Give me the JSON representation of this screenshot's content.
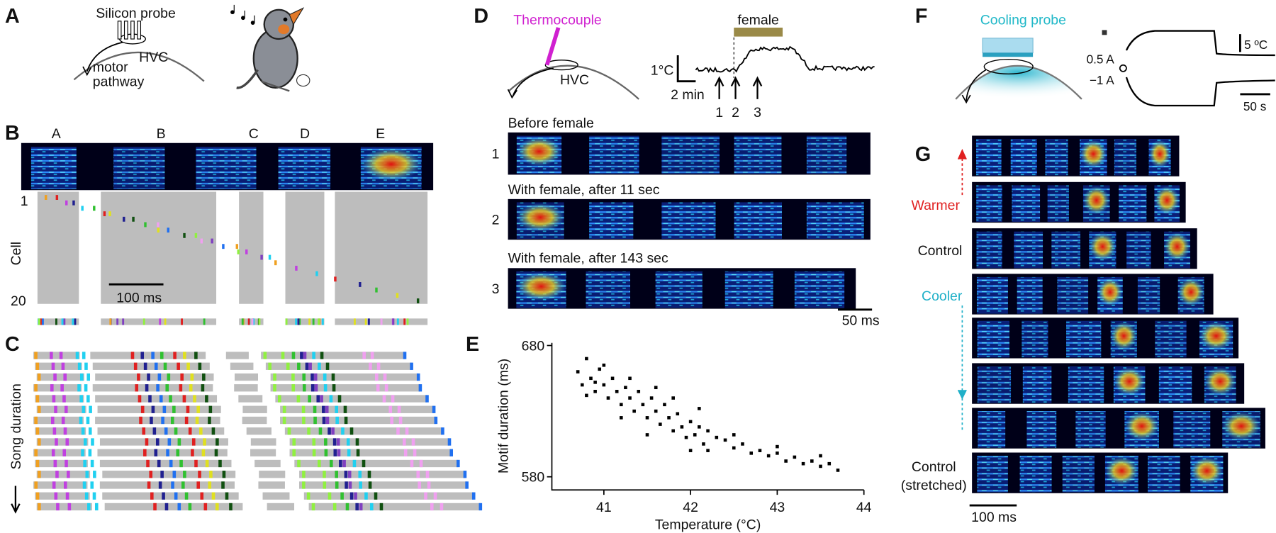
{
  "panels": {
    "A": {
      "letter": "A",
      "probe": "Silicon probe",
      "region": "HVC",
      "pathway": [
        "motor",
        "pathway"
      ]
    },
    "B": {
      "letter": "B",
      "syllables": [
        "A",
        "B",
        "C",
        "D",
        "E"
      ],
      "first_cell": "1",
      "cell_axis": "Cell",
      "last_cell": "20",
      "scale": "100 ms"
    },
    "C": {
      "letter": "C",
      "axis": "Song duration"
    },
    "D": {
      "letter": "D",
      "probe": "Thermocouple",
      "region": "HVC",
      "stimulus": "female",
      "temp_scale": "1°C",
      "time_scale": "2 min",
      "markers": [
        "1",
        "2",
        "3"
      ],
      "rows": [
        {
          "title": "Before female",
          "label": "1"
        },
        {
          "title": "With female, after 11 sec",
          "label": "2"
        },
        {
          "title": "With female, after 143 sec",
          "label": "3"
        }
      ],
      "scale": "50 ms"
    },
    "E": {
      "letter": "E"
    },
    "F": {
      "letter": "F",
      "probe": "Cooling probe",
      "temp_scale": "5 ºC",
      "currents": [
        "0.5 A",
        "−1 A"
      ],
      "time_scale": "50 s"
    },
    "G": {
      "letter": "G",
      "warmer": "Warmer",
      "control": "Control",
      "cooler": "Cooler",
      "stretched": [
        "Control",
        "(stretched)"
      ],
      "scale": "100 ms"
    }
  },
  "chart_data": {
    "type": "scatter",
    "xlabel": "Temperature (°C)",
    "ylabel": "Motif duration (ms)",
    "color": "#000000",
    "x": [
      40.7,
      40.75,
      40.8,
      40.85,
      40.9,
      40.95,
      41.0,
      41.05,
      41.1,
      41.15,
      41.2,
      41.25,
      41.3,
      41.35,
      41.4,
      41.45,
      41.5,
      41.55,
      41.6,
      41.65,
      41.7,
      41.75,
      41.8,
      41.85,
      41.9,
      41.95,
      42.0,
      42.05,
      42.1,
      42.15,
      42.2,
      42.3,
      42.4,
      42.5,
      42.6,
      42.7,
      42.8,
      42.9,
      43.0,
      43.1,
      43.2,
      43.3,
      43.4,
      43.5,
      43.6,
      43.7,
      40.8,
      41.0,
      41.3,
      41.5,
      41.8,
      42.0,
      42.2,
      43.0,
      43.5,
      42.5,
      41.2,
      40.9,
      41.6,
      42.1
    ],
    "y": [
      660,
      650,
      670,
      655,
      645,
      662,
      650,
      640,
      655,
      645,
      635,
      648,
      640,
      630,
      645,
      635,
      625,
      640,
      630,
      620,
      635,
      625,
      615,
      628,
      618,
      610,
      622,
      612,
      618,
      605,
      615,
      610,
      608,
      602,
      605,
      598,
      600,
      596,
      598,
      592,
      595,
      590,
      592,
      588,
      590,
      585,
      642,
      665,
      655,
      612,
      640,
      600,
      600,
      603,
      596,
      612,
      625,
      652,
      648,
      632
    ],
    "xlim": [
      40.4,
      44
    ],
    "ylim": [
      570,
      682
    ],
    "xticks": [
      41,
      42,
      43,
      44
    ],
    "yticks": [
      580,
      680
    ]
  }
}
